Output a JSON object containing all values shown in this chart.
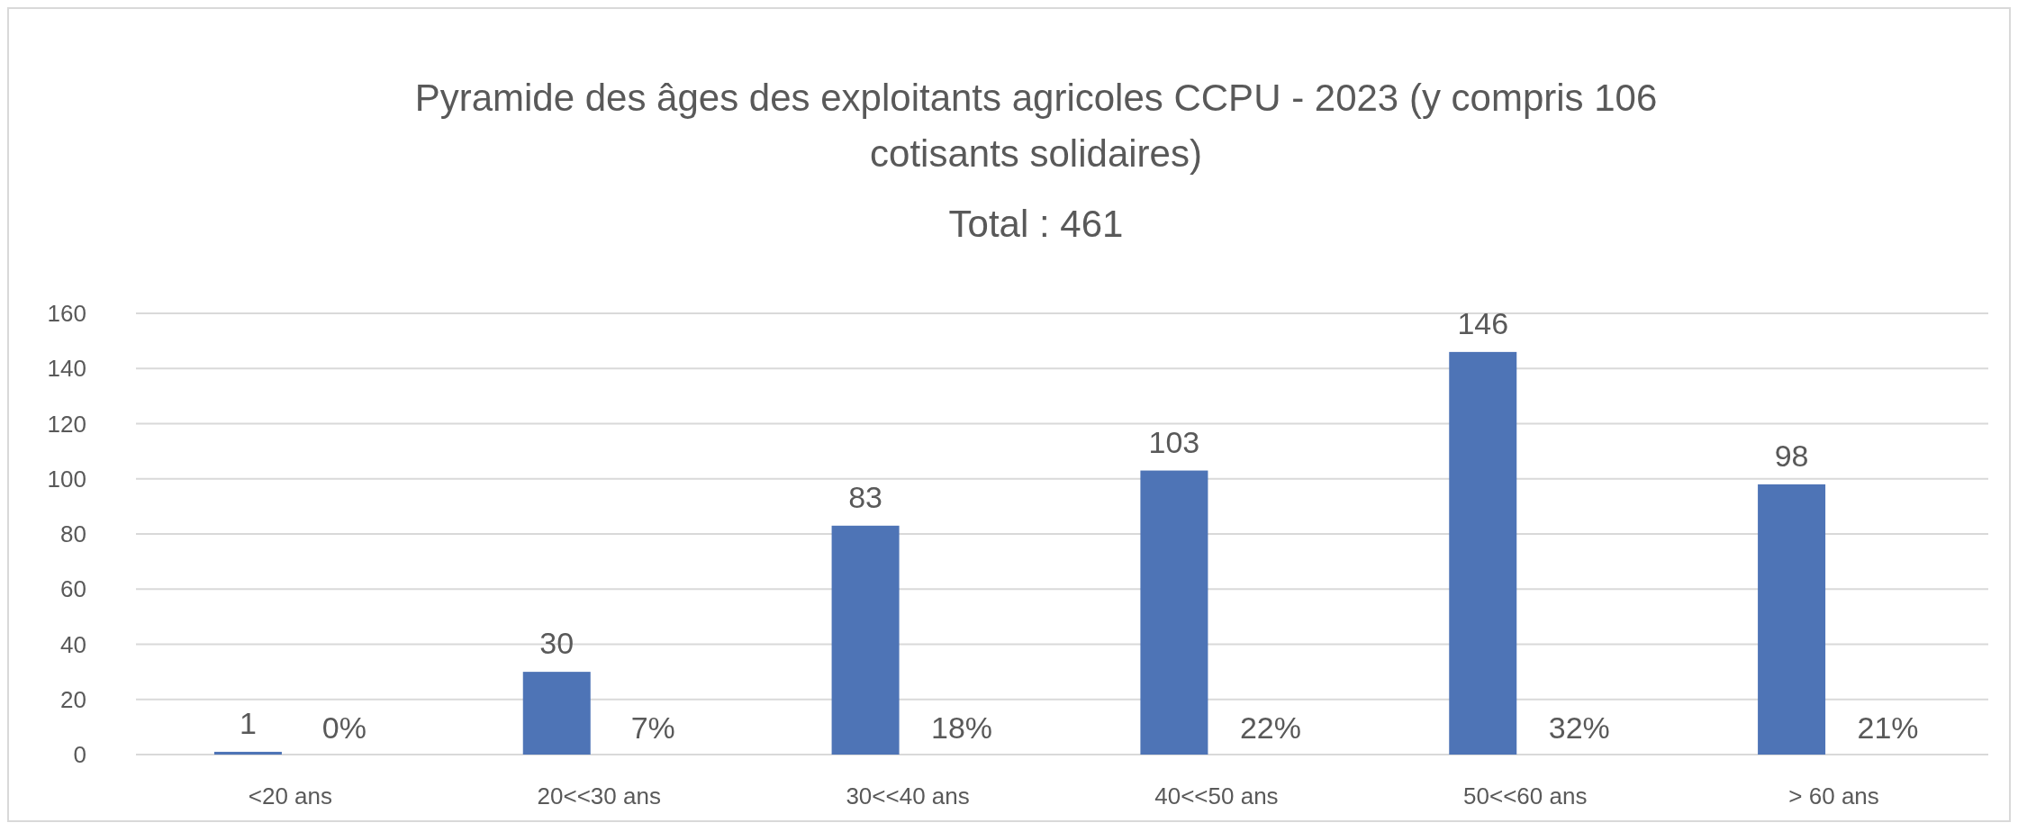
{
  "chart_data": {
    "type": "bar",
    "title": "Pyramide des âges des exploitants agricoles CCPU - 2023 (y compris 106 cotisants solidaires)",
    "subtitle": "Total : 461",
    "categories": [
      "<20 ans",
      "20<<30 ans",
      "30<<40 ans",
      "40<<50 ans",
      "50<<60 ans",
      "> 60 ans"
    ],
    "values": [
      1,
      30,
      83,
      103,
      146,
      98
    ],
    "color": "#4e74b6",
    "data_labels": true,
    "ylim": [
      0,
      160
    ],
    "yticks": [
      0,
      20,
      40,
      60,
      80,
      100,
      120,
      140,
      160
    ],
    "grid": "y",
    "annotations": [
      "0%",
      "7%",
      "18%",
      "22%",
      "32%",
      "21%"
    ]
  }
}
